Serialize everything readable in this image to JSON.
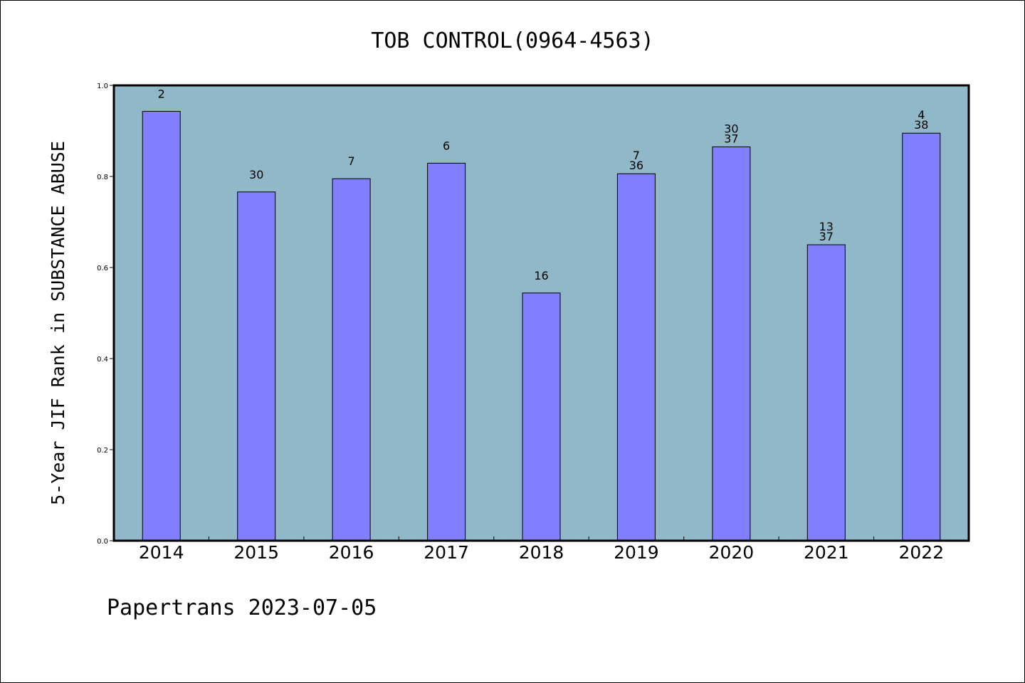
{
  "chart_data": {
    "type": "bar",
    "title": "TOB CONTROL(0964-4563)",
    "ylabel": "5-Year JIF Rank in SUBSTANCE ABUSE",
    "xlabel": "",
    "categories": [
      "2014",
      "2015",
      "2016",
      "2017",
      "2018",
      "2019",
      "2020",
      "2021",
      "2022"
    ],
    "values": [
      0.943,
      0.766,
      0.795,
      0.829,
      0.544,
      0.806,
      0.865,
      0.65,
      0.895
    ],
    "bar_labels": [
      [
        "2"
      ],
      [
        "30"
      ],
      [
        "7"
      ],
      [
        "6"
      ],
      [
        "16"
      ],
      [
        "7",
        "36"
      ],
      [
        "30",
        "37"
      ],
      [
        "13",
        "37"
      ],
      [
        "4",
        "38"
      ]
    ],
    "ylim": [
      0,
      1.0
    ],
    "yticks": [
      "0.0",
      "0.2",
      "0.4",
      "0.6",
      "0.8",
      "1.0"
    ],
    "grid": false,
    "legend": "none"
  },
  "footer": {
    "caption": "Papertrans 2023-07-05"
  },
  "colors": {
    "plot_background": "#91b8c8",
    "bar_fill": "#8080ff",
    "bar_stroke": "#000000",
    "axis": "#000000"
  }
}
